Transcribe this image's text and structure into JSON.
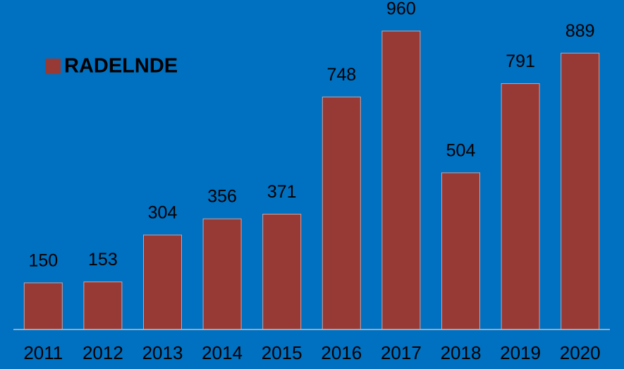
{
  "chart_data": {
    "type": "bar",
    "categories": [
      "2011",
      "2012",
      "2013",
      "2014",
      "2015",
      "2016",
      "2017",
      "2018",
      "2019",
      "2020"
    ],
    "series": [
      {
        "name": "RADELNDE",
        "color": "#973a36",
        "values": [
          150,
          153,
          304,
          356,
          371,
          748,
          960,
          504,
          791,
          889
        ]
      }
    ]
  }
}
